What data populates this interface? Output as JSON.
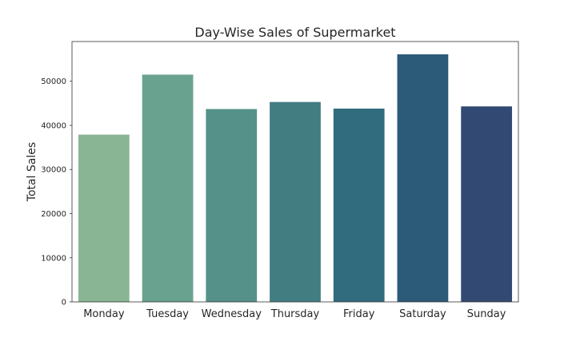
{
  "chart_data": {
    "type": "bar",
    "title": "Day-Wise Sales of Supermarket",
    "xlabel": "",
    "ylabel": "Total Sales",
    "categories": [
      "Monday",
      "Tuesday",
      "Wednesday",
      "Thursday",
      "Friday",
      "Saturday",
      "Sunday"
    ],
    "values": [
      37900,
      51500,
      43700,
      45300,
      43800,
      56100,
      44300
    ],
    "colors": [
      "#89b594",
      "#6aa290",
      "#559189",
      "#427d82",
      "#306b7e",
      "#2c5a79",
      "#324a73"
    ],
    "ylim": [
      0,
      59000
    ],
    "yticks": [
      0,
      10000,
      20000,
      30000,
      40000,
      50000
    ],
    "grid": false,
    "legend": false
  }
}
